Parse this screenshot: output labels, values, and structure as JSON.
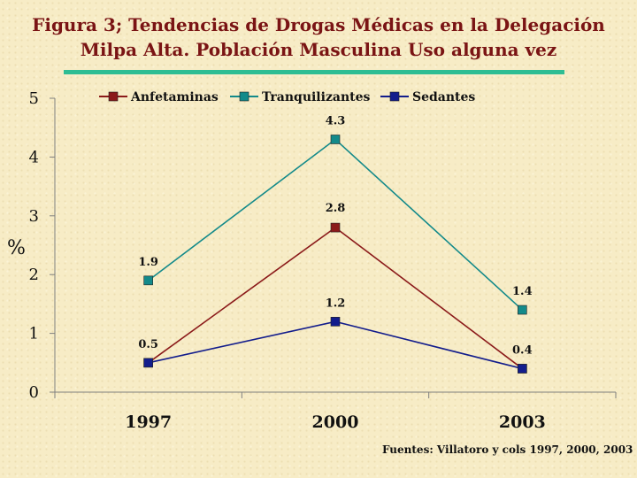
{
  "slide": {
    "title_line1": "Figura 3; Tendencias de Drogas Médicas en  la Delegación",
    "title_line2": "Milpa Alta. Población Masculina Uso alguna vez",
    "source": "Fuentes: Villatoro y cols 1997, 2000, 2003",
    "accent_color": "#2ebd93",
    "title_color": "#7a1414"
  },
  "chart_data": {
    "type": "line",
    "title": "Figura 3; Tendencias de Drogas Médicas en  la Delegación Milpa Alta. Población Masculina Uso alguna vez",
    "xlabel": "",
    "ylabel": "%",
    "categories": [
      "1997",
      "2000",
      "2003"
    ],
    "ylim": [
      0,
      5
    ],
    "yticks": [
      0,
      1,
      2,
      3,
      4,
      5
    ],
    "grid": false,
    "legend_position": "top",
    "series": [
      {
        "name": "Anfetaminas",
        "color": "#8b1a1a",
        "values": [
          0.5,
          2.8,
          0.4
        ],
        "labels": [
          "",
          "2.8",
          ""
        ]
      },
      {
        "name": "Tranquilizantes",
        "color": "#138a8a",
        "values": [
          1.9,
          4.3,
          1.4
        ],
        "labels": [
          "1.9",
          "4.3",
          "1.4"
        ]
      },
      {
        "name": "Sedantes",
        "color": "#131d8c",
        "values": [
          0.5,
          1.2,
          0.4
        ],
        "labels": [
          "0.5",
          "1.2",
          "0.4"
        ]
      }
    ]
  }
}
